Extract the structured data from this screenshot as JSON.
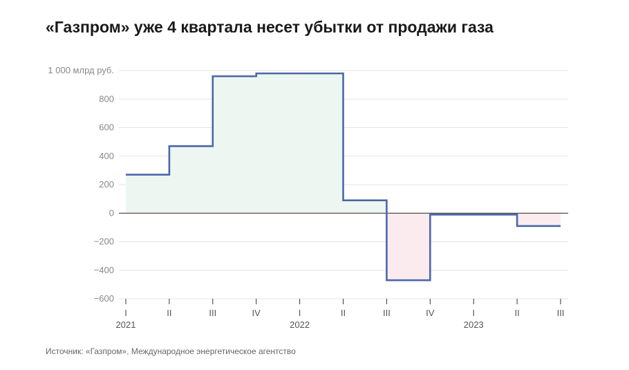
{
  "title": "«Газпром» уже 4 квартала несет убытки от продажи газа",
  "source": "Источник: «Газпром», Международное энергетическое агентство",
  "colors": {
    "line": "#4a67a8",
    "positive_fill": "#eef6f1",
    "negative_fill": "#fbebee",
    "zero_line": "#222222",
    "grid": "#e3e3e3"
  },
  "chart_data": {
    "type": "line",
    "step": true,
    "ylim": [
      -600,
      1000
    ],
    "ylabel": "",
    "y_ticks": [
      {
        "value": 1000,
        "label": "1 000 млрд руб."
      },
      {
        "value": 800,
        "label": "800"
      },
      {
        "value": 600,
        "label": "600"
      },
      {
        "value": 400,
        "label": "400"
      },
      {
        "value": 200,
        "label": "200"
      },
      {
        "value": 0,
        "label": "0"
      },
      {
        "value": -200,
        "label": "−200"
      },
      {
        "value": -400,
        "label": "−400"
      },
      {
        "value": -600,
        "label": "−600"
      }
    ],
    "x": [
      "I 2021",
      "II 2021",
      "III 2021",
      "IV 2021",
      "I 2022",
      "II 2022",
      "III 2022",
      "IV 2022",
      "I 2023",
      "II 2023",
      "III 2023"
    ],
    "x_ticks": [
      "I",
      "II",
      "III",
      "IV",
      "I",
      "II",
      "III",
      "IV",
      "I",
      "II",
      "III"
    ],
    "year_labels": [
      {
        "label": "2021",
        "at_index": 0
      },
      {
        "label": "2022",
        "at_index": 4
      },
      {
        "label": "2023",
        "at_index": 8
      }
    ],
    "series": [
      {
        "values": [
          270,
          470,
          960,
          980,
          980,
          90,
          -470,
          -10,
          -10,
          -90,
          -90
        ]
      }
    ],
    "grid": true
  }
}
